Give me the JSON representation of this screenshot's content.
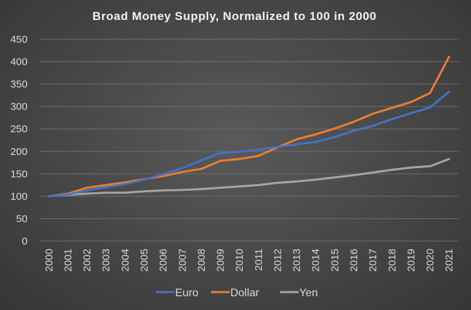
{
  "chart_data": {
    "type": "line",
    "title": "Broad Money Supply, Normalized to 100 in 2000",
    "xlabel": "",
    "ylabel": "",
    "ylim": [
      0,
      450
    ],
    "yticks": [
      0,
      50,
      100,
      150,
      200,
      250,
      300,
      350,
      400,
      450
    ],
    "grid": true,
    "legend_position": "bottom",
    "categories": [
      "2000",
      "2001",
      "2002",
      "2003",
      "2004",
      "2005",
      "2006",
      "2007",
      "2008",
      "2009",
      "2010",
      "2011",
      "2012",
      "2013",
      "2014",
      "2015",
      "2016",
      "2017",
      "2018",
      "2019",
      "2020",
      "2021"
    ],
    "series": [
      {
        "name": "Euro",
        "color": "#4472c4",
        "values": [
          100,
          104,
          113,
          120,
          127,
          137,
          149,
          163,
          180,
          196,
          199,
          204,
          210,
          216,
          221,
          232,
          246,
          257,
          272,
          285,
          298,
          333
        ]
      },
      {
        "name": "Dollar",
        "color": "#ed7d31",
        "values": [
          100,
          106,
          119,
          125,
          131,
          138,
          145,
          154,
          161,
          179,
          183,
          190,
          209,
          227,
          238,
          251,
          266,
          284,
          297,
          310,
          330,
          411
        ]
      },
      {
        "name": "Yen",
        "color": "#a5a5a5",
        "values": [
          100,
          103,
          106,
          108,
          108,
          111,
          113,
          114,
          116,
          119,
          122,
          125,
          130,
          133,
          137,
          142,
          147,
          153,
          159,
          164,
          167,
          183
        ]
      }
    ]
  }
}
